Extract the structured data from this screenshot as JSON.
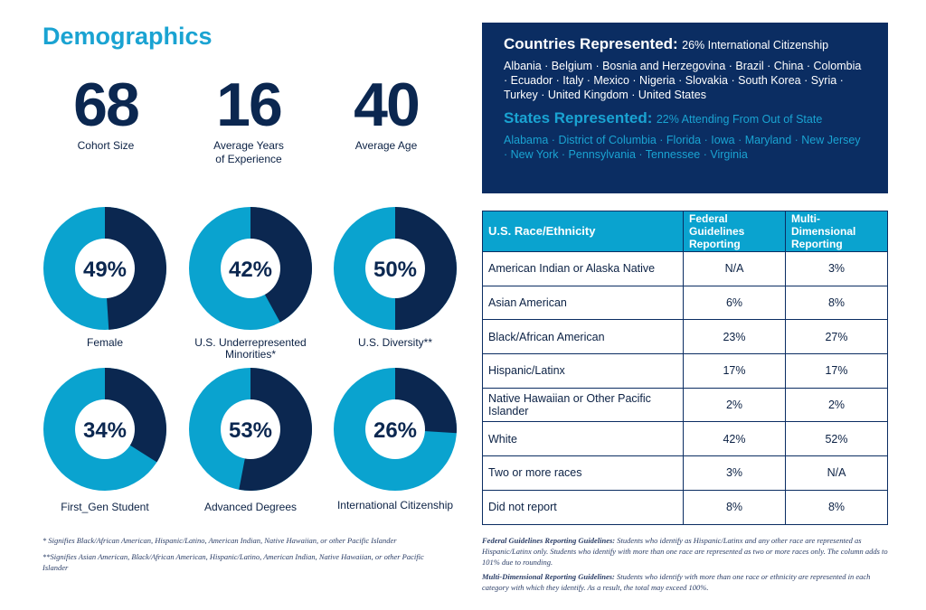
{
  "title": "Demographics",
  "stats": [
    {
      "value": "68",
      "label": "Cohort Size"
    },
    {
      "value": "16",
      "label": "Average Years of Experience"
    },
    {
      "value": "40",
      "label": "Average Age"
    }
  ],
  "donuts": [
    {
      "pct": 49,
      "text": "49%",
      "label": "Female"
    },
    {
      "pct": 42,
      "text": "42%",
      "label": "U.S. Underrepresented Minorities*"
    },
    {
      "pct": 50,
      "text": "50%",
      "label": "U.S. Diversity**"
    },
    {
      "pct": 34,
      "text": "34%",
      "label": "First_Gen Student"
    },
    {
      "pct": 53,
      "text": "53%",
      "label": "Advanced Degrees"
    },
    {
      "pct": 26,
      "text": "26%",
      "label": "International Citizenship"
    }
  ],
  "colors": {
    "navy": "#0b2750",
    "cyan": "#0aa3cf"
  },
  "countries": {
    "heading": "Countries Represented:",
    "sub": "26% International Citizenship",
    "list": "Albania · Belgium · Bosnia and Herzegovina · Brazil · China · Colombia · Ecuador · Italy · Mexico · Nigeria · Slovakia · South Korea · Syria · Turkey · United Kingdom · United States"
  },
  "states": {
    "heading": "States Represented:",
    "sub": "22% Attending From Out of State",
    "list": "Alabama · District of Columbia · Florida · Iowa · Maryland · New Jersey · New York · Pennsylvania · Tennessee · Virginia"
  },
  "table": {
    "headers": [
      "U.S. Race/Ethnicity",
      "Federal Guidelines Reporting",
      "Multi-Dimensional Reporting"
    ],
    "rows": [
      [
        "American Indian or Alaska Native",
        "N/A",
        "3%"
      ],
      [
        "Asian American",
        "6%",
        "8%"
      ],
      [
        "Black/African American",
        "23%",
        "27%"
      ],
      [
        "Hispanic/Latinx",
        "17%",
        "17%"
      ],
      [
        "Native Hawaiian or Other Pacific Islander",
        "2%",
        "2%"
      ],
      [
        "White",
        "42%",
        "52%"
      ],
      [
        "Two or more races",
        "3%",
        "N/A"
      ],
      [
        "Did not report",
        "8%",
        "8%"
      ]
    ]
  },
  "footnotes": {
    "one": "* Signifies Black/African American, Hispanic/Latino, American Indian, Native Hawaiian, or other Pacific Islander",
    "two": "**Signifies Asian American, Black/African American, Hispanic/Latino, American Indian, Native Hawaiian, or other Pacific Islander"
  },
  "guidelines": {
    "federal_title": "Federal Guidelines Reporting Guidelines:",
    "federal_text": " Students who identify as Hispanic/Latinx and any other race are represented as Hispanic/Latinx only. Students who identify with more than one race are represented as two or more races only. The column adds to 101% due to rounding.",
    "multi_title": "Multi-Dimensional Reporting Guidelines:",
    "multi_text": " Students who identify with more than one race or ethnicity are represented in each category with which they identify. As a result, the total may exceed 100%."
  }
}
